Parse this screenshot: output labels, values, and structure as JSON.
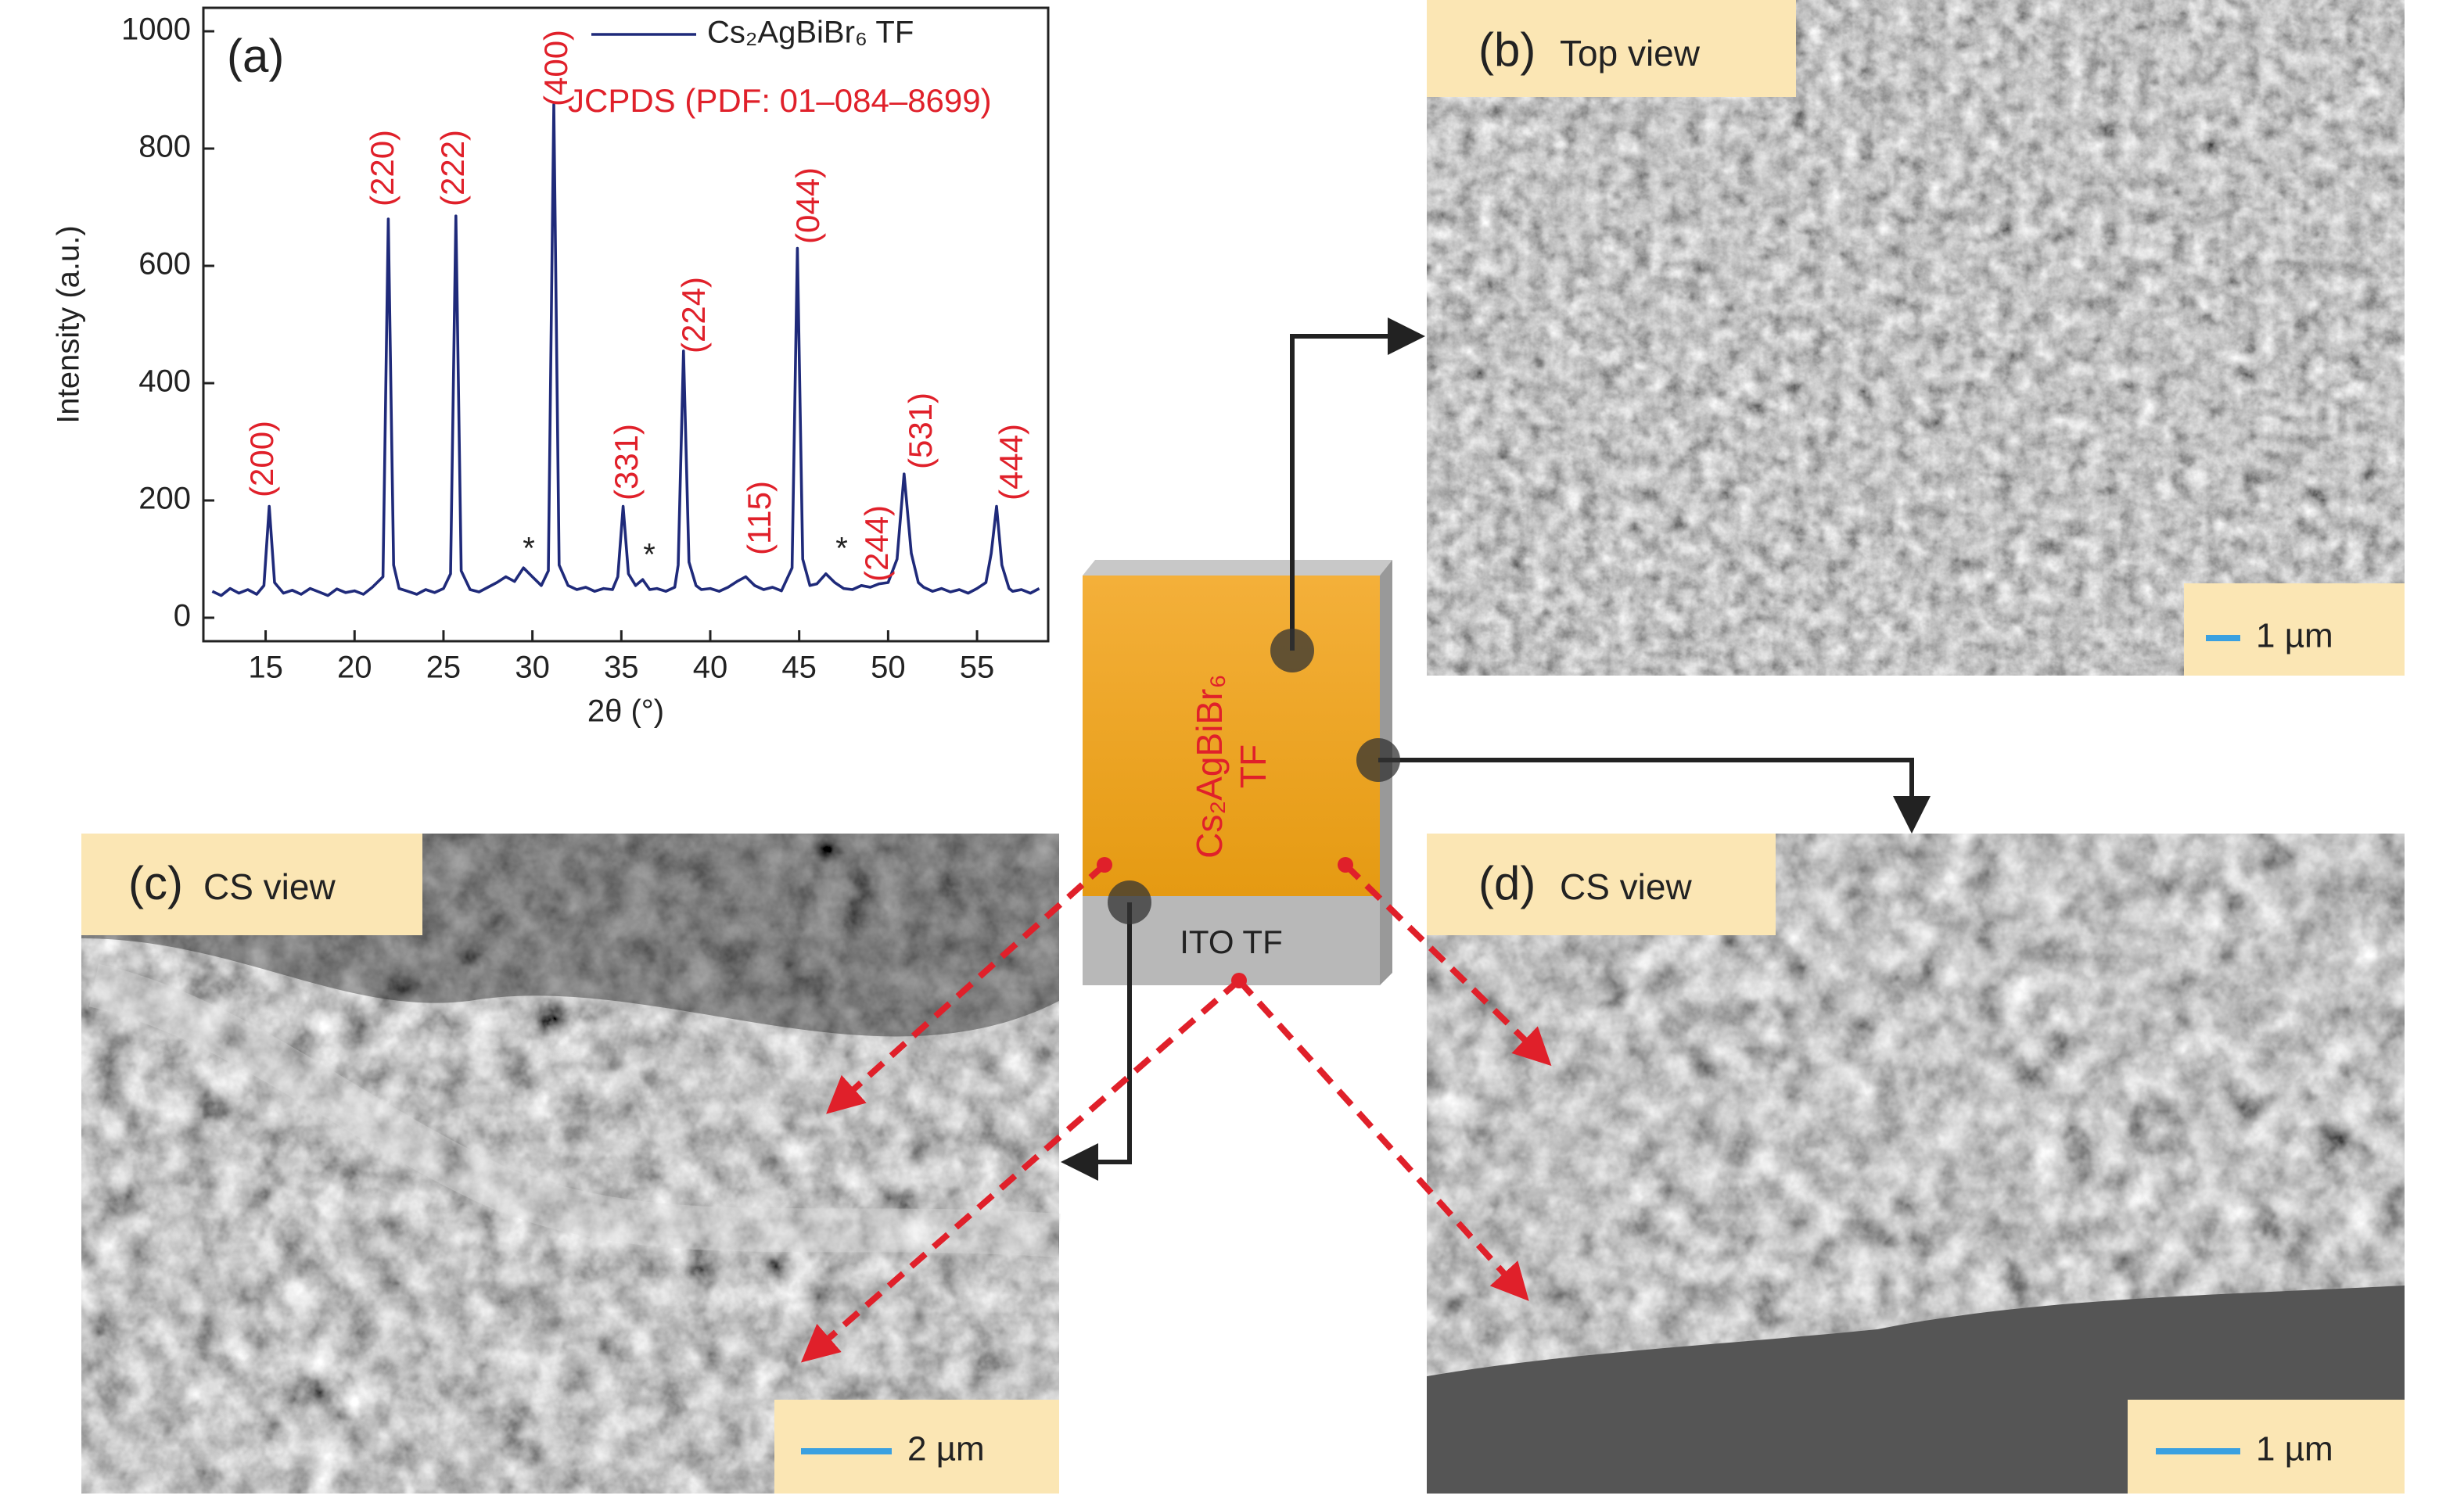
{
  "chart_data": {
    "type": "line",
    "panel_label": "(a)",
    "xlabel": "2θ (°)",
    "ylabel": "Intensity (a.u.)",
    "xlim": [
      11.5,
      59
    ],
    "ylim": [
      -40,
      1040
    ],
    "xticks": [
      15,
      20,
      25,
      30,
      35,
      40,
      45,
      50,
      55
    ],
    "yticks": [
      0,
      200,
      400,
      600,
      800,
      1000
    ],
    "x": [
      12,
      12.5,
      13,
      13.5,
      14,
      14.5,
      14.9,
      15.2,
      15.5,
      16,
      16.5,
      17,
      17.5,
      18,
      18.5,
      19,
      19.5,
      20,
      20.5,
      21,
      21.6,
      21.9,
      22.2,
      22.5,
      23,
      23.5,
      24,
      24.5,
      25,
      25.4,
      25.7,
      26,
      26.5,
      27,
      27.5,
      28,
      28.5,
      29,
      29.5,
      30,
      30.5,
      30.9,
      31.2,
      31.5,
      32,
      32.5,
      33,
      33.5,
      34,
      34.5,
      34.8,
      35.1,
      35.4,
      35.8,
      36.2,
      36.6,
      37,
      37.5,
      38,
      38.2,
      38.5,
      38.8,
      39.2,
      39.5,
      40,
      40.5,
      41,
      41.5,
      42,
      42.5,
      43,
      43.5,
      44,
      44.6,
      44.9,
      45.2,
      45.6,
      46,
      46.5,
      47,
      47.5,
      48,
      48.5,
      49,
      49.5,
      50,
      50.5,
      50.9,
      51.3,
      51.7,
      52,
      52.5,
      53,
      53.5,
      54,
      54.5,
      55,
      55.5,
      55.8,
      56.1,
      56.4,
      56.8,
      57,
      57.5,
      58,
      58.5
    ],
    "series": [
      {
        "name": "Cs₂AgBiBr₆ TF",
        "color": "#1f2a7a",
        "values": [
          45,
          38,
          50,
          42,
          48,
          40,
          55,
          190,
          60,
          42,
          47,
          40,
          50,
          44,
          38,
          49,
          43,
          46,
          40,
          52,
          70,
          680,
          90,
          50,
          45,
          40,
          48,
          43,
          50,
          75,
          685,
          80,
          48,
          44,
          52,
          60,
          70,
          62,
          85,
          70,
          55,
          80,
          875,
          90,
          55,
          48,
          52,
          45,
          50,
          48,
          70,
          190,
          75,
          55,
          65,
          48,
          50,
          45,
          52,
          90,
          455,
          95,
          55,
          48,
          50,
          45,
          52,
          62,
          70,
          55,
          48,
          52,
          46,
          85,
          630,
          100,
          55,
          58,
          75,
          60,
          50,
          48,
          55,
          52,
          58,
          60,
          100,
          245,
          110,
          60,
          52,
          45,
          50,
          44,
          48,
          42,
          50,
          60,
          110,
          190,
          90,
          50,
          45,
          48,
          42,
          50
        ]
      }
    ],
    "reference": "JCPDS (PDF: 01–084–8699)",
    "reference_color": "#e0202a",
    "peak_labels": [
      "(200)",
      "(220)",
      "(222)",
      "(400)",
      "(331)",
      "(224)",
      "(115)",
      "(044)",
      "(244)",
      "(531)",
      "(444)"
    ],
    "impurity_marks": [
      "*",
      "*",
      "*"
    ]
  },
  "panels": {
    "b": {
      "label": "(b)",
      "title": "Top view",
      "scale_bar": "1 µm"
    },
    "c": {
      "label": "(c)",
      "title": "CS view",
      "scale_bar": "2 µm"
    },
    "d": {
      "label": "(d)",
      "title": "CS view",
      "scale_bar": "1 µm"
    }
  },
  "schematic": {
    "film": [
      "Cs₂AgBiBr₆",
      "TF"
    ],
    "substrate": "ITO TF"
  }
}
